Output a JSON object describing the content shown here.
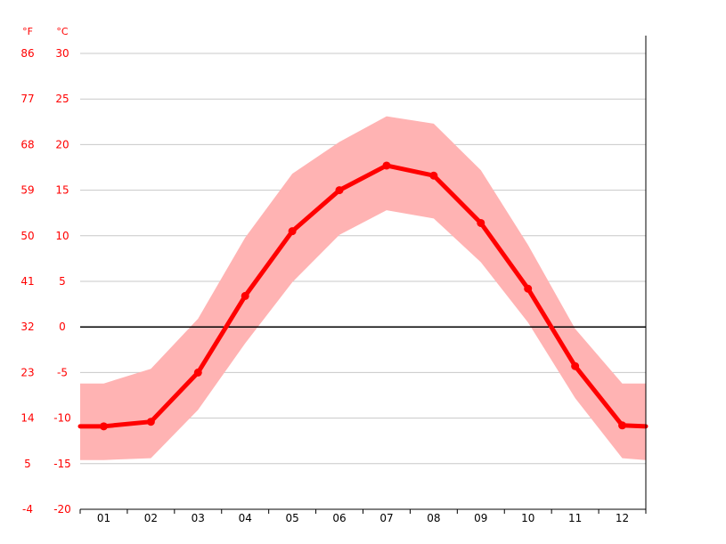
{
  "chart_data": {
    "type": "line",
    "title": "",
    "xlabel": "",
    "ylabel": "",
    "units": {
      "fahrenheit": "°F",
      "celsius": "°C"
    },
    "categories": [
      "01",
      "02",
      "03",
      "04",
      "05",
      "06",
      "07",
      "08",
      "09",
      "10",
      "11",
      "12"
    ],
    "ylim": [
      -20,
      30
    ],
    "y_ticks_celsius": [
      30,
      25,
      20,
      15,
      10,
      5,
      0,
      -5,
      -10,
      -15,
      -20
    ],
    "y_ticks_fahrenheit": [
      86,
      77,
      68,
      59,
      50,
      41,
      32,
      23,
      14,
      5,
      -4
    ],
    "x_range_months": [
      0.5,
      12.5
    ],
    "zero_line": 0,
    "grid": true,
    "legend": "none",
    "series": [
      {
        "values": [
          -10.9,
          -10.4,
          -5.0,
          3.4,
          10.5,
          15.0,
          17.7,
          16.6,
          11.4,
          4.2,
          -4.3,
          -10.8
        ],
        "edge_values": [
          -10.9,
          -10.9
        ],
        "color": "#ff0000"
      }
    ],
    "band": {
      "upper": [
        -6.2,
        -4.6,
        0.9,
        9.8,
        16.8,
        20.3,
        23.1,
        22.3,
        17.2,
        9.0,
        -0.2,
        -6.2
      ],
      "lower": [
        -14.6,
        -14.4,
        -9.1,
        -1.8,
        4.9,
        10.1,
        12.8,
        11.9,
        7.1,
        0.5,
        -7.8,
        -14.4
      ],
      "edge_upper": [
        -6.2,
        -6.2
      ],
      "edge_lower": [
        -14.6,
        -14.6
      ],
      "color": "#ffb3b3"
    }
  }
}
